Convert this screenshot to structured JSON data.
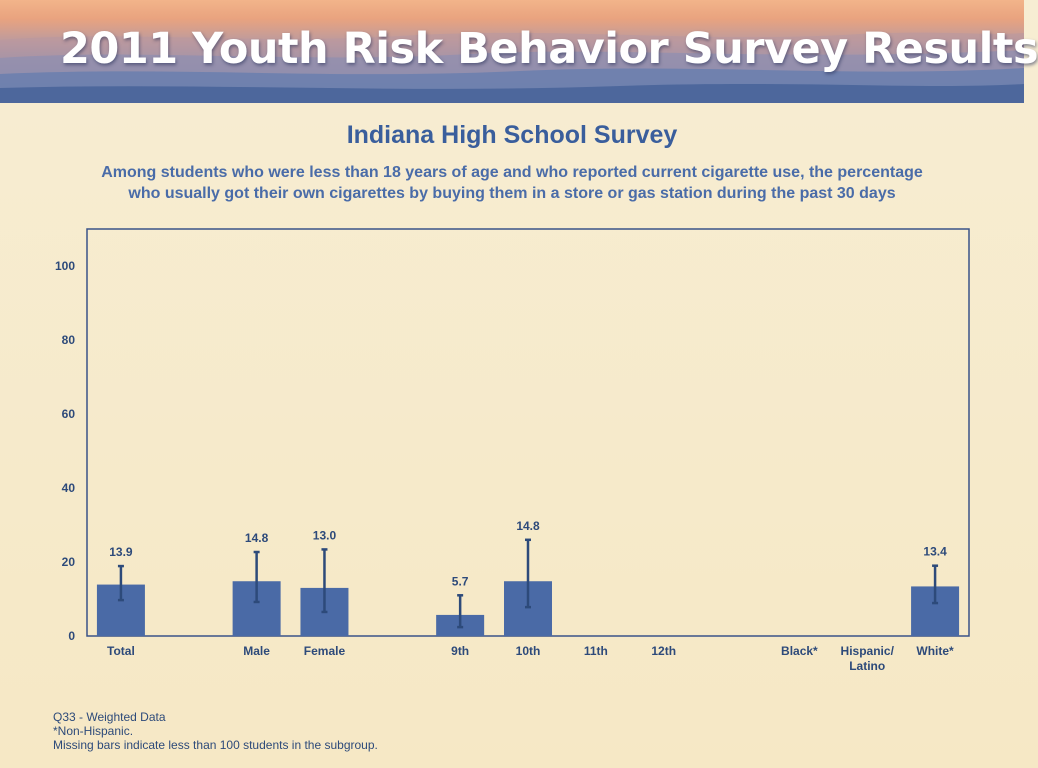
{
  "banner": {
    "title": "2011 Youth Risk Behavior Survey Results"
  },
  "header": {
    "title": "Indiana High School Survey",
    "subtitle_line1": "Among students who were less than 18 years of age and who reported current cigarette use, the percentage",
    "subtitle_line2": "who usually got their own cigarettes by buying them in a store or gas station during the past 30 days"
  },
  "footnotes": {
    "line1": "Q33 - Weighted Data",
    "line2": "*Non-Hispanic.",
    "line3": "Missing bars indicate less than 100 students in the subgroup."
  },
  "chart_data": {
    "type": "bar",
    "title": "",
    "xlabel": "",
    "ylabel": "",
    "ylim": [
      0,
      110
    ],
    "yticks": [
      0,
      20,
      40,
      60,
      80,
      100
    ],
    "grid": false,
    "legend": "none",
    "bar_color": "#4a6aa6",
    "error_color": "#2d4a7a",
    "categories": [
      {
        "label": "Total",
        "value": 13.9,
        "ci": [
          9.7,
          18.9
        ]
      },
      {
        "label": "",
        "value": null
      },
      {
        "label": "Male",
        "value": 14.8,
        "ci": [
          9.2,
          22.7
        ]
      },
      {
        "label": "Female",
        "value": 13.0,
        "ci": [
          6.5,
          23.4
        ]
      },
      {
        "label": "",
        "value": null
      },
      {
        "label": "9th",
        "value": 5.7,
        "ci": [
          2.4,
          11.0
        ]
      },
      {
        "label": "10th",
        "value": 14.8,
        "ci": [
          7.8,
          26.0
        ]
      },
      {
        "label": "11th",
        "value": null
      },
      {
        "label": "12th",
        "value": null
      },
      {
        "label": "",
        "value": null
      },
      {
        "label": "Black*",
        "value": null
      },
      {
        "label": "Hispanic/\nLatino",
        "value": null
      },
      {
        "label": "White*",
        "value": 13.4,
        "ci": [
          8.9,
          19.0
        ]
      }
    ]
  }
}
